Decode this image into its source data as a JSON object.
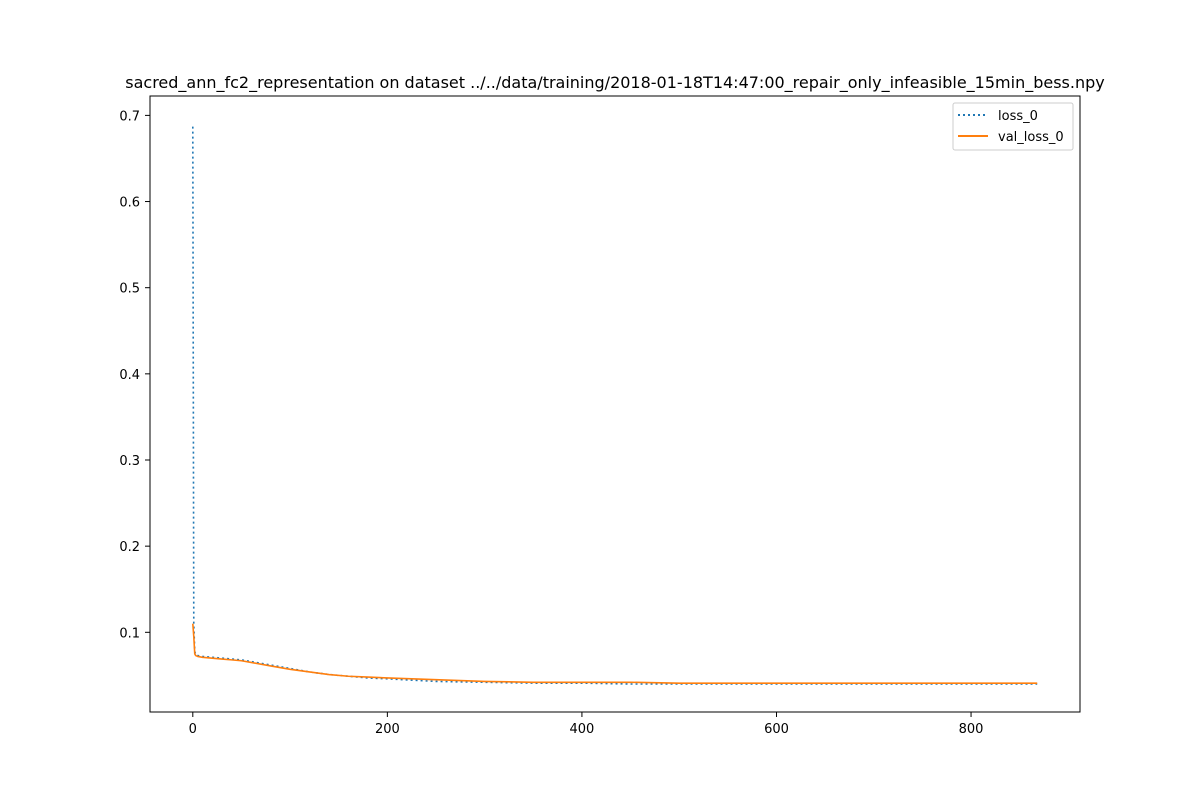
{
  "chart_data": {
    "type": "line",
    "title": "sacred_ann_fc2_representation on dataset ../../data/training/2018-01-18T14:47:00_repair_only_infeasible_15min_bess.npy",
    "xlabel": "",
    "ylabel": "",
    "xlim": [
      -44,
      912
    ],
    "ylim": [
      0.0075,
      0.7225
    ],
    "xticks": [
      0,
      200,
      400,
      600,
      800
    ],
    "xtick_labels": [
      "0",
      "200",
      "400",
      "600",
      "800"
    ],
    "yticks": [
      0.1,
      0.2,
      0.3,
      0.4,
      0.5,
      0.6,
      0.7
    ],
    "ytick_labels": [
      "0.1",
      "0.2",
      "0.3",
      "0.4",
      "0.5",
      "0.6",
      "0.7"
    ],
    "grid": false,
    "legend_position": "upper right",
    "series": [
      {
        "name": "loss_0",
        "color": "#1f77b4",
        "style": "dotted",
        "x": [
          0,
          1,
          2,
          3,
          5,
          10,
          20,
          30,
          40,
          50,
          60,
          80,
          100,
          120,
          140,
          160,
          180,
          200,
          250,
          300,
          350,
          400,
          450,
          500,
          550,
          600,
          650,
          700,
          750,
          800,
          850,
          868
        ],
        "y": [
          0.687,
          0.11,
          0.078,
          0.074,
          0.073,
          0.072,
          0.071,
          0.07,
          0.069,
          0.068,
          0.066,
          0.062,
          0.058,
          0.054,
          0.051,
          0.049,
          0.047,
          0.046,
          0.043,
          0.042,
          0.041,
          0.041,
          0.04,
          0.04,
          0.04,
          0.04,
          0.04,
          0.04,
          0.04,
          0.04,
          0.04,
          0.04
        ]
      },
      {
        "name": "val_loss_0",
        "color": "#ff7f0e",
        "style": "solid",
        "x": [
          0,
          1,
          2,
          3,
          5,
          10,
          20,
          30,
          40,
          50,
          60,
          80,
          100,
          120,
          140,
          160,
          180,
          200,
          250,
          300,
          350,
          400,
          450,
          500,
          550,
          600,
          650,
          700,
          750,
          800,
          850,
          868
        ],
        "y": [
          0.11,
          0.095,
          0.075,
          0.073,
          0.072,
          0.071,
          0.07,
          0.069,
          0.068,
          0.067,
          0.065,
          0.061,
          0.057,
          0.054,
          0.051,
          0.049,
          0.048,
          0.047,
          0.045,
          0.043,
          0.042,
          0.042,
          0.042,
          0.041,
          0.041,
          0.041,
          0.041,
          0.041,
          0.041,
          0.041,
          0.041,
          0.041
        ]
      }
    ]
  }
}
